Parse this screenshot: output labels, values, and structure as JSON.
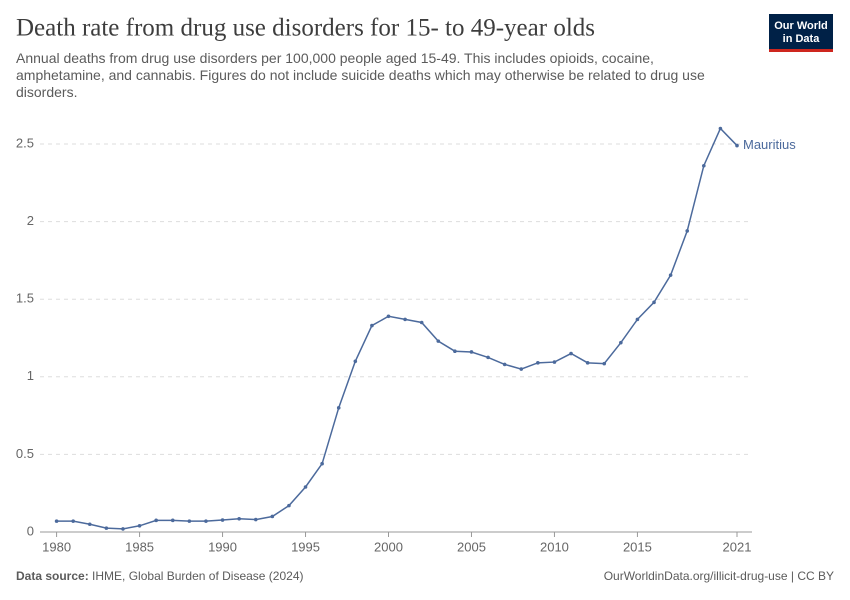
{
  "chart_data": {
    "type": "line",
    "title": "Death rate from drug use disorders for 15- to 49-year olds",
    "subtitle": "Annual deaths from drug use disorders per 100,000 people aged 15-49. This includes opioids, cocaine, amphetamine, and cannabis. Figures do not include suicide deaths which may otherwise be related to drug use disorders.",
    "source_label": "Data source:",
    "source": "IHME, Global Burden of Disease (2024)",
    "footer_right": "OurWorldinData.org/illicit-drug-use | CC BY",
    "logo": [
      "Our World",
      "in Data"
    ],
    "x": [
      1980,
      1981,
      1982,
      1983,
      1984,
      1985,
      1986,
      1987,
      1988,
      1989,
      1990,
      1991,
      1992,
      1993,
      1994,
      1995,
      1996,
      1997,
      1998,
      1999,
      2000,
      2001,
      2002,
      2003,
      2004,
      2005,
      2006,
      2007,
      2008,
      2009,
      2010,
      2011,
      2012,
      2013,
      2014,
      2015,
      2016,
      2017,
      2018,
      2019,
      2020,
      2021
    ],
    "series": [
      {
        "name": "Mauritius",
        "color": "#4c6a9c",
        "values": [
          0.07,
          0.07,
          0.05,
          0.025,
          0.02,
          0.04,
          0.075,
          0.075,
          0.07,
          0.07,
          0.077,
          0.085,
          0.08,
          0.1,
          0.17,
          0.29,
          0.44,
          0.8,
          1.1,
          1.33,
          1.39,
          1.37,
          1.35,
          1.23,
          1.165,
          1.16,
          1.125,
          1.08,
          1.05,
          1.09,
          1.095,
          1.15,
          1.09,
          1.085,
          1.22,
          1.37,
          1.48,
          1.655,
          1.94,
          2.36,
          2.6,
          2.49
        ]
      }
    ],
    "xlim": [
      1979,
      2021
    ],
    "xticks": [
      1980,
      1985,
      1990,
      1995,
      2000,
      2005,
      2010,
      2015,
      2021
    ],
    "ylim": [
      0,
      2.6
    ],
    "yticks": [
      0,
      0.5,
      1,
      1.5,
      2,
      2.5
    ],
    "grid": true
  }
}
